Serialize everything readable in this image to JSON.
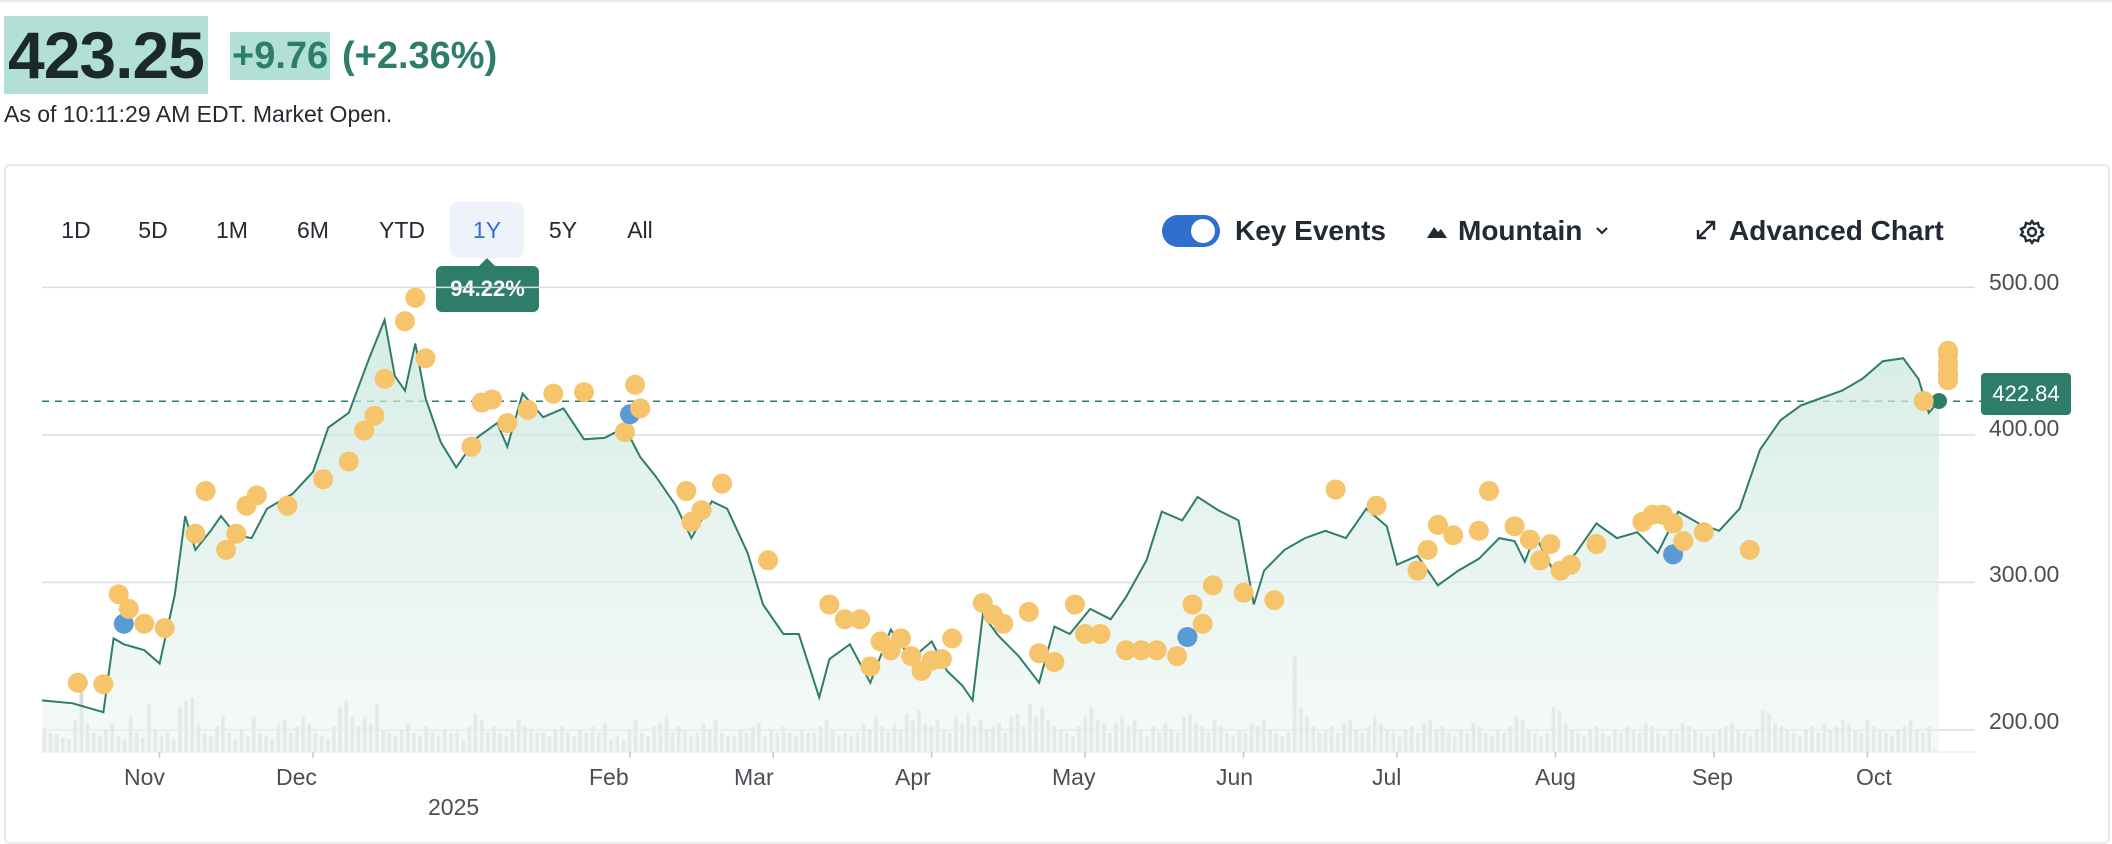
{
  "quote": {
    "price": "423.25",
    "change": "+9.76",
    "change_pct": "(+2.36%)",
    "as_of": "As of 10:11:29 AM EDT. Market Open.",
    "positive_color": "#2e7d6a",
    "highlight_color": "#b2e0d6"
  },
  "toolbar": {
    "ranges": [
      "1D",
      "5D",
      "1M",
      "6M",
      "YTD",
      "1Y",
      "5Y",
      "All"
    ],
    "active_range": "1Y",
    "range_change": "94.22%",
    "key_events_label": "Key Events",
    "key_events_on": true,
    "chart_style_label": "Mountain",
    "advanced_label": "Advanced Chart",
    "icons": [
      "mountain-icon",
      "chevron-down-icon",
      "expand-icon",
      "gear-icon"
    ],
    "accent_color": "#2f6fd0"
  },
  "current_price_tag": "422.84",
  "chart_data": {
    "type": "area",
    "y_ticks": [
      "500.00",
      "400.00",
      "300.00",
      "200.00"
    ],
    "ylim": [
      185,
      503
    ],
    "x_tick_labels": [
      "Nov",
      "Dec",
      "Feb",
      "Mar",
      "Apr",
      "May",
      "Jun",
      "Jul",
      "Aug",
      "Sep",
      "Oct"
    ],
    "year_label": "2025",
    "x_tick_dates": [
      "2024-11-01",
      "2024-12-01",
      "2025-02-01",
      "2025-03-01",
      "2025-04-01",
      "2025-05-01",
      "2025-06-01",
      "2025-07-01",
      "2025-08-01",
      "2025-09-01",
      "2025-10-01"
    ],
    "x_range": [
      "2024-10-09",
      "2025-10-15"
    ],
    "reference_line": 422.84,
    "grid": true,
    "line_color": "#2e7d6a",
    "event_colors": {
      "earnings": "#5b9bd5",
      "other": "#f5c46b"
    },
    "series": [
      {
        "x": [
          "2024-10-09",
          "2024-10-15",
          "2024-10-21",
          "2024-10-23",
          "2024-10-25",
          "2024-10-29",
          "2024-11-01",
          "2024-11-04",
          "2024-11-06",
          "2024-11-08",
          "2024-11-11",
          "2024-11-13",
          "2024-11-16",
          "2024-11-19",
          "2024-11-22",
          "2024-11-27",
          "2024-12-01",
          "2024-12-04",
          "2024-12-08",
          "2024-12-12",
          "2024-12-15",
          "2024-12-17",
          "2024-12-19",
          "2024-12-21",
          "2024-12-23",
          "2024-12-26",
          "2024-12-29",
          "2025-01-02",
          "2025-01-06",
          "2025-01-08",
          "2025-01-11",
          "2025-01-15",
          "2025-01-19",
          "2025-01-23",
          "2025-01-27",
          "2025-01-31",
          "2025-02-03",
          "2025-02-06",
          "2025-02-10",
          "2025-02-13",
          "2025-02-17",
          "2025-02-20",
          "2025-02-24",
          "2025-02-27",
          "2025-03-03",
          "2025-03-06",
          "2025-03-10",
          "2025-03-12",
          "2025-03-16",
          "2025-03-20",
          "2025-03-24",
          "2025-03-28",
          "2025-04-01",
          "2025-04-04",
          "2025-04-07",
          "2025-04-09",
          "2025-04-11",
          "2025-04-14",
          "2025-04-18",
          "2025-04-22",
          "2025-04-25",
          "2025-04-28",
          "2025-05-02",
          "2025-05-06",
          "2025-05-09",
          "2025-05-13",
          "2025-05-16",
          "2025-05-20",
          "2025-05-23",
          "2025-05-27",
          "2025-05-31",
          "2025-06-03",
          "2025-06-05",
          "2025-06-09",
          "2025-06-13",
          "2025-06-17",
          "2025-06-21",
          "2025-06-25",
          "2025-06-29",
          "2025-07-01",
          "2025-07-05",
          "2025-07-09",
          "2025-07-13",
          "2025-07-17",
          "2025-07-21",
          "2025-07-24",
          "2025-07-26",
          "2025-07-28",
          "2025-08-01",
          "2025-08-05",
          "2025-08-09",
          "2025-08-13",
          "2025-08-17",
          "2025-08-21",
          "2025-08-25",
          "2025-08-29",
          "2025-09-02",
          "2025-09-06",
          "2025-09-10",
          "2025-09-14",
          "2025-09-18",
          "2025-09-22",
          "2025-09-26",
          "2025-09-30",
          "2025-10-04",
          "2025-10-08",
          "2025-10-11",
          "2025-10-13",
          "2025-10-15"
        ],
        "y": [
          220,
          218,
          212,
          262,
          258,
          254,
          245,
          292,
          345,
          322,
          335,
          345,
          332,
          330,
          350,
          360,
          375,
          405,
          415,
          452,
          478,
          440,
          430,
          462,
          425,
          395,
          378,
          398,
          408,
          392,
          428,
          412,
          418,
          397,
          398,
          405,
          385,
          372,
          352,
          330,
          355,
          350,
          320,
          285,
          265,
          265,
          222,
          248,
          258,
          232,
          268,
          248,
          260,
          240,
          230,
          220,
          278,
          264,
          250,
          232,
          270,
          265,
          282,
          275,
          290,
          315,
          348,
          342,
          358,
          349,
          342,
          285,
          308,
          322,
          330,
          335,
          330,
          350,
          338,
          312,
          318,
          298,
          308,
          316,
          330,
          328,
          314,
          332,
          305,
          320,
          340,
          330,
          334,
          320,
          348,
          340,
          335,
          350,
          390,
          410,
          420,
          425,
          430,
          438,
          450,
          452,
          438,
          415,
          423
        ]
      }
    ],
    "events": [
      {
        "x": "2024-10-16",
        "y": 232,
        "kind": "other"
      },
      {
        "x": "2024-10-21",
        "y": 231,
        "kind": "other"
      },
      {
        "x": "2024-10-24",
        "y": 292,
        "kind": "other"
      },
      {
        "x": "2024-10-25",
        "y": 272,
        "kind": "earnings"
      },
      {
        "x": "2024-10-26",
        "y": 282,
        "kind": "other"
      },
      {
        "x": "2024-10-29",
        "y": 272,
        "kind": "other"
      },
      {
        "x": "2024-11-02",
        "y": 269,
        "kind": "other"
      },
      {
        "x": "2024-11-08",
        "y": 333,
        "kind": "other"
      },
      {
        "x": "2024-11-10",
        "y": 362,
        "kind": "other"
      },
      {
        "x": "2024-11-14",
        "y": 322,
        "kind": "other"
      },
      {
        "x": "2024-11-16",
        "y": 333,
        "kind": "other"
      },
      {
        "x": "2024-11-18",
        "y": 352,
        "kind": "other"
      },
      {
        "x": "2024-11-20",
        "y": 359,
        "kind": "other"
      },
      {
        "x": "2024-11-26",
        "y": 352,
        "kind": "other"
      },
      {
        "x": "2024-12-03",
        "y": 370,
        "kind": "other"
      },
      {
        "x": "2024-12-08",
        "y": 382,
        "kind": "other"
      },
      {
        "x": "2024-12-11",
        "y": 403,
        "kind": "other"
      },
      {
        "x": "2024-12-13",
        "y": 413,
        "kind": "other"
      },
      {
        "x": "2024-12-15",
        "y": 438,
        "kind": "other"
      },
      {
        "x": "2024-12-19",
        "y": 477,
        "kind": "other"
      },
      {
        "x": "2024-12-21",
        "y": 493,
        "kind": "other"
      },
      {
        "x": "2024-12-23",
        "y": 452,
        "kind": "other"
      },
      {
        "x": "2025-01-01",
        "y": 392,
        "kind": "other"
      },
      {
        "x": "2025-01-03",
        "y": 422,
        "kind": "other"
      },
      {
        "x": "2025-01-05",
        "y": 424,
        "kind": "other"
      },
      {
        "x": "2025-01-08",
        "y": 408,
        "kind": "other"
      },
      {
        "x": "2025-01-12",
        "y": 417,
        "kind": "other"
      },
      {
        "x": "2025-01-17",
        "y": 428,
        "kind": "other"
      },
      {
        "x": "2025-01-23",
        "y": 429,
        "kind": "other"
      },
      {
        "x": "2025-01-31",
        "y": 402,
        "kind": "other"
      },
      {
        "x": "2025-02-01",
        "y": 414,
        "kind": "earnings"
      },
      {
        "x": "2025-02-02",
        "y": 434,
        "kind": "other"
      },
      {
        "x": "2025-02-03",
        "y": 418,
        "kind": "other"
      },
      {
        "x": "2025-02-12",
        "y": 362,
        "kind": "other"
      },
      {
        "x": "2025-02-13",
        "y": 341,
        "kind": "other"
      },
      {
        "x": "2025-02-15",
        "y": 349,
        "kind": "other"
      },
      {
        "x": "2025-02-19",
        "y": 367,
        "kind": "other"
      },
      {
        "x": "2025-02-28",
        "y": 315,
        "kind": "other"
      },
      {
        "x": "2025-03-12",
        "y": 285,
        "kind": "other"
      },
      {
        "x": "2025-03-15",
        "y": 275,
        "kind": "other"
      },
      {
        "x": "2025-03-18",
        "y": 275,
        "kind": "other"
      },
      {
        "x": "2025-03-20",
        "y": 243,
        "kind": "other"
      },
      {
        "x": "2025-03-22",
        "y": 260,
        "kind": "other"
      },
      {
        "x": "2025-03-24",
        "y": 254,
        "kind": "other"
      },
      {
        "x": "2025-03-26",
        "y": 262,
        "kind": "other"
      },
      {
        "x": "2025-03-28",
        "y": 250,
        "kind": "other"
      },
      {
        "x": "2025-03-30",
        "y": 240,
        "kind": "other"
      },
      {
        "x": "2025-04-01",
        "y": 247,
        "kind": "other"
      },
      {
        "x": "2025-04-03",
        "y": 248,
        "kind": "other"
      },
      {
        "x": "2025-04-05",
        "y": 262,
        "kind": "other"
      },
      {
        "x": "2025-04-11",
        "y": 286,
        "kind": "other"
      },
      {
        "x": "2025-04-13",
        "y": 278,
        "kind": "other"
      },
      {
        "x": "2025-04-15",
        "y": 272,
        "kind": "other"
      },
      {
        "x": "2025-04-20",
        "y": 280,
        "kind": "other"
      },
      {
        "x": "2025-04-22",
        "y": 252,
        "kind": "other"
      },
      {
        "x": "2025-04-25",
        "y": 246,
        "kind": "other"
      },
      {
        "x": "2025-04-29",
        "y": 285,
        "kind": "other"
      },
      {
        "x": "2025-05-01",
        "y": 265,
        "kind": "other"
      },
      {
        "x": "2025-05-04",
        "y": 265,
        "kind": "other"
      },
      {
        "x": "2025-05-09",
        "y": 254,
        "kind": "other"
      },
      {
        "x": "2025-05-12",
        "y": 254,
        "kind": "other"
      },
      {
        "x": "2025-05-15",
        "y": 254,
        "kind": "other"
      },
      {
        "x": "2025-05-19",
        "y": 250,
        "kind": "other"
      },
      {
        "x": "2025-05-21",
        "y": 263,
        "kind": "earnings"
      },
      {
        "x": "2025-05-22",
        "y": 285,
        "kind": "other"
      },
      {
        "x": "2025-05-24",
        "y": 272,
        "kind": "other"
      },
      {
        "x": "2025-05-26",
        "y": 298,
        "kind": "other"
      },
      {
        "x": "2025-06-01",
        "y": 293,
        "kind": "other"
      },
      {
        "x": "2025-06-07",
        "y": 288,
        "kind": "other"
      },
      {
        "x": "2025-06-19",
        "y": 363,
        "kind": "other"
      },
      {
        "x": "2025-06-27",
        "y": 352,
        "kind": "other"
      },
      {
        "x": "2025-07-05",
        "y": 308,
        "kind": "other"
      },
      {
        "x": "2025-07-07",
        "y": 322,
        "kind": "other"
      },
      {
        "x": "2025-07-09",
        "y": 339,
        "kind": "other"
      },
      {
        "x": "2025-07-12",
        "y": 332,
        "kind": "other"
      },
      {
        "x": "2025-07-17",
        "y": 335,
        "kind": "other"
      },
      {
        "x": "2025-07-19",
        "y": 362,
        "kind": "other"
      },
      {
        "x": "2025-07-24",
        "y": 338,
        "kind": "other"
      },
      {
        "x": "2025-07-27",
        "y": 329,
        "kind": "other"
      },
      {
        "x": "2025-07-29",
        "y": 315,
        "kind": "other"
      },
      {
        "x": "2025-07-31",
        "y": 326,
        "kind": "other"
      },
      {
        "x": "2025-08-02",
        "y": 308,
        "kind": "other"
      },
      {
        "x": "2025-08-04",
        "y": 312,
        "kind": "other"
      },
      {
        "x": "2025-08-09",
        "y": 326,
        "kind": "other"
      },
      {
        "x": "2025-08-18",
        "y": 341,
        "kind": "other"
      },
      {
        "x": "2025-08-20",
        "y": 346,
        "kind": "other"
      },
      {
        "x": "2025-08-22",
        "y": 346,
        "kind": "other"
      },
      {
        "x": "2025-08-24",
        "y": 340,
        "kind": "other"
      },
      {
        "x": "2025-08-24",
        "y": 319,
        "kind": "earnings"
      },
      {
        "x": "2025-08-26",
        "y": 328,
        "kind": "other"
      },
      {
        "x": "2025-08-30",
        "y": 334,
        "kind": "other"
      },
      {
        "x": "2025-09-08",
        "y": 322,
        "kind": "other"
      },
      {
        "x": "2025-10-12",
        "y": 423,
        "kind": "other"
      },
      {
        "x": "2025-10-19",
        "y": 441,
        "kind": "other"
      },
      {
        "x": "2025-10-21",
        "y": 448,
        "kind": "other"
      },
      {
        "x": "2025-10-22",
        "y": 441,
        "kind": "other"
      },
      {
        "x": "2025-10-23",
        "y": 441,
        "kind": "other"
      },
      {
        "x": "2025-10-28",
        "y": 454,
        "kind": "other"
      },
      {
        "x": "2025-10-31",
        "y": 457,
        "kind": "other"
      },
      {
        "x": "2025-11-04",
        "y": 442,
        "kind": "other"
      },
      {
        "x": "2025-11-07",
        "y": 447,
        "kind": "other"
      },
      {
        "x": "2025-11-10",
        "y": 448,
        "kind": "other"
      },
      {
        "x": "2025-11-13",
        "y": 437,
        "kind": "other"
      }
    ],
    "volume": [
      15,
      12,
      11,
      9,
      8,
      20,
      45,
      18,
      12,
      10,
      14,
      18,
      10,
      8,
      22,
      12,
      9,
      30,
      14,
      10,
      12,
      8,
      28,
      32,
      34,
      18,
      12,
      10,
      16,
      22,
      12,
      8,
      14,
      10,
      22,
      12,
      10,
      8,
      18,
      20,
      12,
      16,
      22,
      18,
      12,
      10,
      8,
      16,
      28,
      32,
      22,
      16,
      22,
      18,
      30,
      14,
      12,
      10,
      14,
      18,
      12,
      10,
      16,
      12,
      10,
      14,
      12,
      12,
      8,
      16,
      24,
      20,
      12,
      16,
      12,
      10,
      14,
      20,
      16,
      14,
      12,
      12,
      10,
      14,
      16,
      12,
      10,
      14,
      12,
      16,
      12,
      18,
      8,
      10,
      8,
      14,
      20,
      12,
      10,
      16,
      18,
      22,
      12,
      16,
      14,
      10,
      12,
      18,
      14,
      20,
      12,
      10,
      10,
      14,
      12,
      16,
      18,
      10,
      14,
      12,
      16,
      12,
      10,
      14,
      12,
      12,
      16,
      20,
      14,
      10,
      12,
      10,
      12,
      18,
      14,
      22,
      16,
      12,
      18,
      14,
      24,
      20,
      26,
      18,
      16,
      20,
      14,
      12,
      22,
      18,
      24,
      16,
      20,
      14,
      16,
      18,
      12,
      22,
      24,
      16,
      30,
      22,
      28,
      20,
      16,
      14,
      12,
      10,
      16,
      22,
      28,
      20,
      18,
      12,
      18,
      22,
      16,
      20,
      14,
      10,
      16,
      12,
      18,
      14,
      12,
      22,
      24,
      18,
      16,
      12,
      20,
      16,
      12,
      10,
      14,
      12,
      18,
      16,
      20,
      14,
      12,
      10,
      12,
      60,
      28,
      22,
      16,
      12,
      14,
      16,
      12,
      18,
      20,
      14,
      12,
      16,
      22,
      18,
      14,
      12,
      10,
      14,
      16,
      12,
      18,
      20,
      14,
      16,
      12,
      10,
      14,
      12,
      18,
      16,
      12,
      10,
      14,
      12,
      16,
      22,
      20,
      14,
      12,
      10,
      12,
      28,
      26,
      18,
      14,
      12,
      10,
      14,
      16,
      12,
      10,
      14,
      12,
      16,
      14,
      12,
      18,
      16,
      12,
      10,
      14,
      12,
      18,
      16,
      14,
      12,
      10,
      12,
      14,
      16,
      18,
      14,
      12,
      10,
      14,
      26,
      24,
      18,
      16,
      14,
      12,
      10,
      14,
      16,
      12,
      18,
      14,
      16,
      20,
      18,
      14,
      12,
      20,
      16,
      14,
      12,
      10,
      14,
      16,
      20,
      14,
      12,
      16,
      2
    ]
  }
}
